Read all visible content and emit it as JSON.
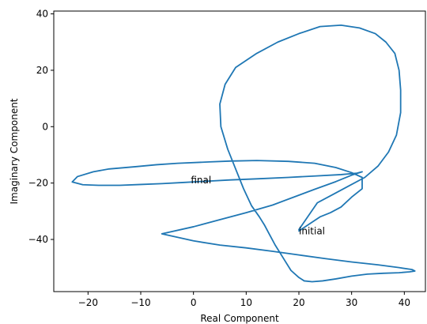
{
  "chart_data": {
    "type": "line",
    "title": "",
    "xlabel": "Real Component",
    "ylabel": "Imaginary Component",
    "xlim": [
      -26.5,
      44.0
    ],
    "ylim": [
      -58.5,
      41.0
    ],
    "xticks": [
      -20,
      -10,
      0,
      10,
      20,
      30,
      40
    ],
    "yticks": [
      -40,
      -20,
      0,
      20,
      40
    ],
    "grid": false,
    "line_color": "#1f77b4",
    "annotations": [
      {
        "text": "initial",
        "x": 20,
        "y": -37
      },
      {
        "text": "final",
        "x": -0.5,
        "y": -19
      }
    ],
    "series": [
      {
        "x": [
          20,
          22,
          24,
          26,
          28,
          30,
          32,
          32,
          30,
          27,
          23,
          18,
          12,
          7,
          3,
          -3,
          -7,
          -11,
          -16,
          -19,
          -22,
          -23,
          -21,
          -18,
          -14,
          -10,
          -6,
          -2,
          2,
          7,
          12,
          18,
          23,
          28,
          31,
          32,
          30,
          27,
          23,
          19,
          15,
          10,
          5,
          0,
          -6,
          0,
          5,
          10,
          15,
          20,
          25,
          30,
          35,
          39,
          41.5,
          42,
          41,
          39,
          36,
          33,
          30,
          27,
          24.5,
          22.5,
          21,
          20,
          18.5,
          17.5,
          16.5,
          15.5,
          14.5,
          13.5,
          12.5,
          11,
          9.5,
          8,
          6.5,
          5.2,
          5,
          6,
          8,
          12,
          16,
          20,
          24,
          28,
          31.5,
          34.5,
          36.5,
          38.2,
          39,
          39.3,
          39.3,
          38.5,
          37,
          35,
          32.5,
          29.5,
          26.5,
          23.5,
          20
        ],
        "y": [
          -37,
          -34.5,
          -32,
          -30.5,
          -28.5,
          -25,
          -22,
          -18,
          -16.3,
          -14.5,
          -13,
          -12.3,
          -12,
          -12.2,
          -12.5,
          -13,
          -13.5,
          -14.2,
          -15,
          -16,
          -17.7,
          -19.6,
          -20.6,
          -20.8,
          -20.8,
          -20.5,
          -20.2,
          -19.8,
          -19.4,
          -18.9,
          -18.5,
          -18,
          -17.5,
          -17,
          -16.5,
          -16,
          -17.2,
          -19.5,
          -22.2,
          -25,
          -27.8,
          -30.5,
          -33,
          -35.5,
          -38,
          -40.5,
          -42,
          -43,
          -44.2,
          -45.5,
          -46.8,
          -48,
          -49,
          -50,
          -50.7,
          -51.2,
          -51.5,
          -51.8,
          -52,
          -52.3,
          -53,
          -54,
          -54.7,
          -55,
          -54.7,
          -53.5,
          -51,
          -48,
          -45,
          -42,
          -38.5,
          -35,
          -32,
          -28,
          -22,
          -15,
          -8,
          0,
          8,
          15,
          21,
          26,
          30,
          33,
          35.5,
          36,
          35,
          33,
          30,
          26,
          20,
          13,
          5,
          -3,
          -9,
          -14,
          -18,
          -21,
          -24,
          -27,
          -36.5
        ]
      }
    ]
  }
}
